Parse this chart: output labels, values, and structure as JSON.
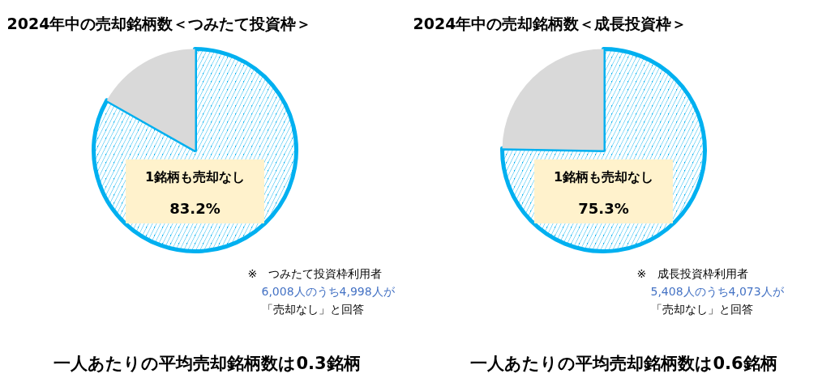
{
  "chart_data": [
    {
      "type": "pie",
      "title": "2024年中の売却銘柄数＜つみたて投資枠＞",
      "categories": [
        "1銘柄も売却なし",
        null
      ],
      "values": [
        83.2,
        16.8
      ],
      "colors": [
        "#00b0f0",
        "#d9d9d9"
      ],
      "value_labels": [
        "83.2%",
        null
      ],
      "annotations": [
        "※　つみたて投資枠利用者",
        "6,008人のうち4,998人が",
        "「売却なし」と回答",
        "一人あたりの平均売却銘柄数は0.3銘柄"
      ]
    },
    {
      "type": "pie",
      "title": "2024年中の売却銘柄数＜成長投資枠＞",
      "categories": [
        "1銘柄も売却なし",
        null
      ],
      "values": [
        75.3,
        24.7
      ],
      "colors": [
        "#00b0f0",
        "#d9d9d9"
      ],
      "value_labels": [
        "75.3%",
        null
      ],
      "annotations": [
        "※　成長投資枠利用者",
        "5,408人のうち4,073人が",
        "「売却なし」と回答",
        "一人あたりの平均売却銘柄数は0.6銘柄"
      ]
    }
  ]
}
